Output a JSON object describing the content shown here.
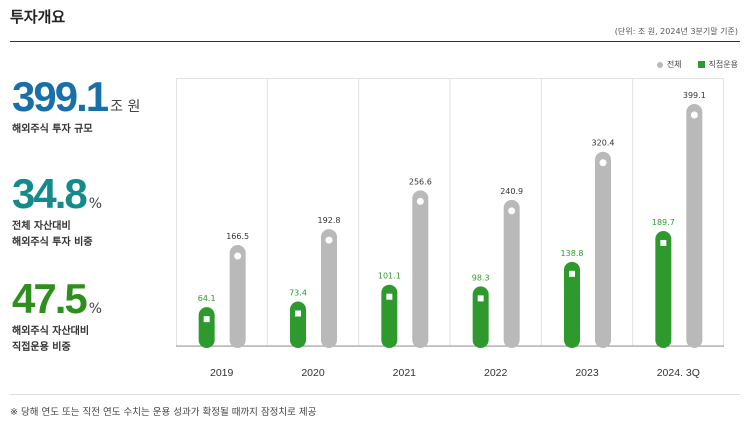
{
  "page": {
    "title": "투자개요",
    "unit_note": "(단위: 조 원, 2024년 3분기말 기준)",
    "footnote": "※ 당해 연도 또는 직전 연도 수치는 운용 성과가 확정될 때까지 잠정치로 제공"
  },
  "legend": {
    "total": "전체",
    "direct": "직접운용"
  },
  "stats": [
    {
      "value": "399.1",
      "unit": "조 원",
      "line1": "해외주식 투자 규모",
      "line2": "",
      "color": "#1a6fa8"
    },
    {
      "value": "34.8",
      "unit": "%",
      "line1": "전체 자산대비",
      "line2": "해외주식 투자 비중",
      "color": "#158a8a"
    },
    {
      "value": "47.5",
      "unit": "%",
      "line1": "해외주식 자산대비",
      "line2": "직접운용 비중",
      "color": "#2e8f1e"
    }
  ],
  "colors": {
    "total": "#b9b9b9",
    "direct": "#2e9a2e",
    "direct_label": "#2e9a2e",
    "total_label": "#333333"
  },
  "chart_data": {
    "type": "bar",
    "categories": [
      "2019",
      "2020",
      "2021",
      "2022",
      "2023",
      "2024. 3Q"
    ],
    "series": [
      {
        "name": "직접운용",
        "values": [
          64.1,
          73.4,
          101.1,
          98.3,
          138.8,
          189.7
        ]
      },
      {
        "name": "전체",
        "values": [
          166.5,
          192.8,
          256.6,
          240.9,
          320.4,
          399.1
        ]
      }
    ],
    "title": "",
    "xlabel": "",
    "ylabel": "",
    "ylim": [
      0,
      400
    ],
    "grid": "vertical",
    "legend_position": "top-right"
  }
}
